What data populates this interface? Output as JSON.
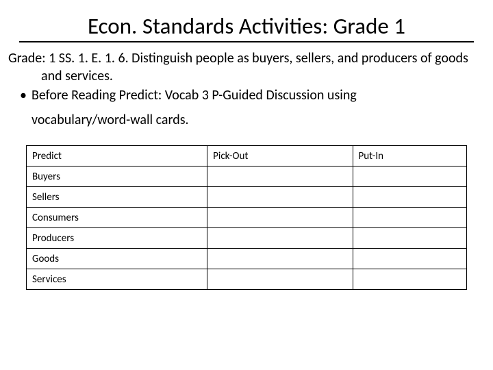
{
  "title": "Econ. Standards Activities: Grade 1",
  "standard_line": "Grade: 1 SS. 1. E. 1. 6. Distinguish people as buyers, sellers, and producers of goods and services.",
  "bullet_line": "Before Reading Predict: Vocab 3 P-Guided Discussion using",
  "vocab_line": "vocabulary/word-wall cards.",
  "table": {
    "columns": [
      "Predict",
      "Pick-Out",
      "Put-In"
    ],
    "rows": [
      [
        "Buyers",
        "",
        ""
      ],
      [
        "Sellers",
        "",
        ""
      ],
      [
        "Consumers",
        "",
        ""
      ],
      [
        "Producers",
        "",
        ""
      ],
      [
        "Goods",
        "",
        ""
      ],
      [
        "Services",
        "",
        ""
      ]
    ],
    "border_color": "#000000",
    "font_size": 15,
    "cell_padding": "5px 8px"
  },
  "colors": {
    "background": "#ffffff",
    "text": "#000000",
    "title_underline": "#000000"
  },
  "fonts": {
    "title_size": 33,
    "body_size": 20,
    "table_size": 15,
    "family": "Calibri"
  }
}
